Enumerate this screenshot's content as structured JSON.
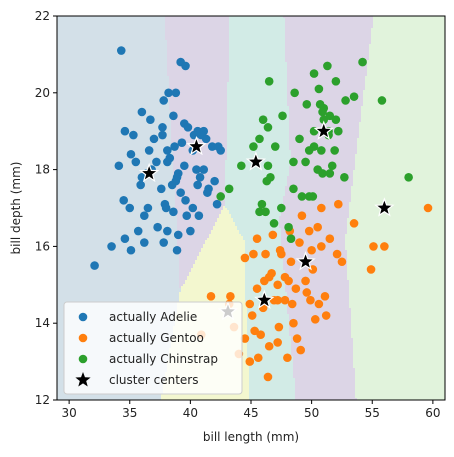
{
  "chart_data": {
    "type": "scatter",
    "title": "",
    "xlabel": "bill length (mm)",
    "ylabel": "bill depth (mm)",
    "xlim": [
      29,
      61
    ],
    "ylim": [
      12,
      22
    ],
    "xticks": [
      30,
      35,
      40,
      45,
      50,
      55,
      60
    ],
    "yticks": [
      12,
      14,
      16,
      18,
      20,
      22
    ],
    "grid": false,
    "legend_position": "bottom-left",
    "background_regions": {
      "description": "k-means decision regions (8 clusters)",
      "colors": [
        "#d3e0e8",
        "#dcd5e6",
        "#d2ebe6",
        "#f3f7cf",
        "#e1f3dc"
      ]
    },
    "series": [
      {
        "name": "actually Adelie",
        "color": "#1f77b4",
        "points": [
          [
            34.3,
            21.1
          ],
          [
            39.2,
            20.8
          ],
          [
            38.2,
            20.0
          ],
          [
            39.6,
            20.7
          ],
          [
            38.8,
            20.0
          ],
          [
            36.7,
            19.3
          ],
          [
            36.0,
            19.5
          ],
          [
            37.8,
            19.8
          ],
          [
            37.7,
            18.9
          ],
          [
            40.6,
            19.0
          ],
          [
            41.1,
            19.0
          ],
          [
            38.6,
            19.4
          ],
          [
            39.5,
            19.2
          ],
          [
            34.6,
            19.0
          ],
          [
            37.0,
            18.8
          ],
          [
            37.7,
            19.1
          ],
          [
            35.3,
            18.9
          ],
          [
            40.3,
            18.9
          ],
          [
            39.8,
            19.1
          ],
          [
            40.9,
            18.9
          ],
          [
            41.3,
            18.8
          ],
          [
            36.6,
            18.5
          ],
          [
            38.7,
            18.6
          ],
          [
            35.1,
            18.4
          ],
          [
            39.3,
            18.7
          ],
          [
            42.5,
            18.5
          ],
          [
            41.8,
            18.6
          ],
          [
            38.1,
            18.5
          ],
          [
            40.2,
            18.5
          ],
          [
            42.3,
            18.6
          ],
          [
            35.5,
            18.2
          ],
          [
            37.2,
            18.2
          ],
          [
            38.3,
            18.3
          ],
          [
            36.8,
            18.0
          ],
          [
            38.1,
            18.2
          ],
          [
            39.5,
            18.1
          ],
          [
            40.5,
            18.0
          ],
          [
            36.4,
            17.9
          ],
          [
            39.0,
            17.9
          ],
          [
            41.1,
            18.0
          ],
          [
            34.1,
            18.1
          ],
          [
            38.9,
            17.8
          ],
          [
            40.8,
            17.8
          ],
          [
            36.0,
            17.8
          ],
          [
            38.8,
            17.7
          ],
          [
            42.0,
            17.7
          ],
          [
            35.9,
            17.6
          ],
          [
            38.5,
            17.6
          ],
          [
            40.6,
            17.6
          ],
          [
            37.6,
            17.5
          ],
          [
            39.2,
            17.4
          ],
          [
            41.5,
            17.5
          ],
          [
            34.5,
            17.2
          ],
          [
            36.5,
            17.0
          ],
          [
            37.9,
            17.1
          ],
          [
            39.6,
            17.2
          ],
          [
            41.4,
            17.4
          ],
          [
            35.0,
            17.0
          ],
          [
            38.0,
            17.0
          ],
          [
            40.2,
            17.0
          ],
          [
            42.2,
            17.1
          ],
          [
            36.2,
            16.8
          ],
          [
            39.7,
            16.8
          ],
          [
            38.6,
            16.9
          ],
          [
            40.7,
            16.8
          ],
          [
            35.7,
            16.4
          ],
          [
            37.3,
            16.5
          ],
          [
            38.1,
            16.4
          ],
          [
            39.0,
            16.3
          ],
          [
            40.0,
            16.4
          ],
          [
            34.6,
            16.2
          ],
          [
            36.2,
            16.1
          ],
          [
            33.5,
            16.0
          ],
          [
            37.8,
            16.1
          ],
          [
            38.9,
            15.9
          ],
          [
            35.1,
            15.9
          ],
          [
            32.1,
            15.5
          ]
        ]
      },
      {
        "name": "actually Gentoo",
        "color": "#ff7f0e",
        "points": [
          [
            43.2,
            14.5
          ],
          [
            43.6,
            13.9
          ],
          [
            45.2,
            15.8
          ],
          [
            46.2,
            15.8
          ],
          [
            47.5,
            15.8
          ],
          [
            45.5,
            16.2
          ],
          [
            46.8,
            16.3
          ],
          [
            49.0,
            16.1
          ],
          [
            50.8,
            16.0
          ],
          [
            50.1,
            15.4
          ],
          [
            48.7,
            14.9
          ],
          [
            46.5,
            15.2
          ],
          [
            47.8,
            15.2
          ],
          [
            44.9,
            14.5
          ],
          [
            46.0,
            14.4
          ],
          [
            47.2,
            14.6
          ],
          [
            48.4,
            14.5
          ],
          [
            49.9,
            14.6
          ],
          [
            45.3,
            13.8
          ],
          [
            46.5,
            13.4
          ],
          [
            45.8,
            13.7
          ],
          [
            47.3,
            13.9
          ],
          [
            48.5,
            14.0
          ],
          [
            50.3,
            14.1
          ],
          [
            49.6,
            14.8
          ],
          [
            51.1,
            14.7
          ],
          [
            52.1,
            15.8
          ],
          [
            51.5,
            16.2
          ],
          [
            50.5,
            16.5
          ],
          [
            48.2,
            16.4
          ],
          [
            49.2,
            16.8
          ],
          [
            50.8,
            17.0
          ],
          [
            47.2,
            15.0
          ],
          [
            44.5,
            13.6
          ],
          [
            45.6,
            13.1
          ],
          [
            46.4,
            12.6
          ],
          [
            44.9,
            13.0
          ],
          [
            47.2,
            13.5
          ],
          [
            48.0,
            13.1
          ],
          [
            49.1,
            13.3
          ],
          [
            46.1,
            15.1
          ],
          [
            48.3,
            15.6
          ],
          [
            50.0,
            15.9
          ],
          [
            53.5,
            16.6
          ],
          [
            54.9,
            15.4
          ],
          [
            56.0,
            16.0
          ],
          [
            44.5,
            15.7
          ],
          [
            41.7,
            14.7
          ],
          [
            40.9,
            13.7
          ],
          [
            43.3,
            14.7
          ],
          [
            44.0,
            13.2
          ],
          [
            52.5,
            15.6
          ],
          [
            55.1,
            16.0
          ],
          [
            59.6,
            17.0
          ],
          [
            52.2,
            17.1
          ],
          [
            49.8,
            16.4
          ],
          [
            45.1,
            14.2
          ],
          [
            48.8,
            13.6
          ],
          [
            47.8,
            14.6
          ],
          [
            46.9,
            14.6
          ],
          [
            50.6,
            14.5
          ],
          [
            51.2,
            14.2
          ],
          [
            49.5,
            15.1
          ],
          [
            48.1,
            15.1
          ],
          [
            47.4,
            15.9
          ],
          [
            46.7,
            15.3
          ],
          [
            45.5,
            14.9
          ]
        ]
      },
      {
        "name": "actually Chinstrap",
        "color": "#2ca02c",
        "points": [
          [
            46.5,
            20.3
          ],
          [
            48.6,
            20.0
          ],
          [
            50.2,
            20.5
          ],
          [
            51.3,
            20.7
          ],
          [
            52.0,
            20.3
          ],
          [
            50.6,
            20.1
          ],
          [
            51.0,
            19.6
          ],
          [
            52.8,
            19.8
          ],
          [
            53.5,
            19.9
          ],
          [
            49.6,
            19.7
          ],
          [
            50.9,
            19.5
          ],
          [
            51.5,
            19.4
          ],
          [
            52.0,
            19.3
          ],
          [
            50.2,
            18.6
          ],
          [
            51.4,
            18.9
          ],
          [
            49.0,
            18.8
          ],
          [
            49.8,
            18.5
          ],
          [
            50.8,
            18.5
          ],
          [
            51.9,
            18.5
          ],
          [
            48.5,
            18.2
          ],
          [
            49.5,
            18.2
          ],
          [
            50.5,
            18.0
          ],
          [
            51.7,
            18.1
          ],
          [
            46.4,
            18.1
          ],
          [
            47.0,
            18.6
          ],
          [
            45.2,
            18.6
          ],
          [
            46.6,
            17.8
          ],
          [
            45.9,
            17.1
          ],
          [
            45.7,
            16.9
          ],
          [
            46.3,
            17.7
          ],
          [
            49.2,
            17.3
          ],
          [
            50.1,
            17.3
          ],
          [
            51.5,
            17.9
          ],
          [
            52.7,
            17.8
          ],
          [
            45.7,
            18.8
          ],
          [
            46.4,
            19.1
          ],
          [
            47.6,
            19.4
          ],
          [
            46.9,
            16.6
          ],
          [
            42.5,
            17.3
          ],
          [
            43.2,
            17.5
          ],
          [
            44.2,
            18.1
          ],
          [
            46.0,
            19.3
          ],
          [
            46.2,
            16.9
          ],
          [
            47.5,
            17.0
          ],
          [
            48.1,
            16.5
          ],
          [
            48.3,
            16.2
          ],
          [
            50.2,
            19.0
          ],
          [
            51.0,
            19.3
          ],
          [
            52.2,
            19.0
          ],
          [
            55.8,
            19.8
          ],
          [
            58.0,
            17.8
          ],
          [
            54.2,
            20.8
          ],
          [
            51.4,
            19.0
          ],
          [
            50.7,
            19.7
          ],
          [
            49.8,
            17.3
          ],
          [
            50.9,
            17.9
          ],
          [
            48.5,
            17.5
          ]
        ]
      },
      {
        "name": "cluster centers",
        "color": "#000000",
        "marker": "star",
        "points": [
          [
            36.6,
            17.9
          ],
          [
            40.5,
            18.6
          ],
          [
            45.4,
            18.2
          ],
          [
            51.0,
            19.0
          ],
          [
            56.0,
            17.0
          ],
          [
            49.5,
            15.6
          ],
          [
            46.1,
            14.6
          ],
          [
            43.1,
            14.3
          ]
        ]
      }
    ]
  }
}
